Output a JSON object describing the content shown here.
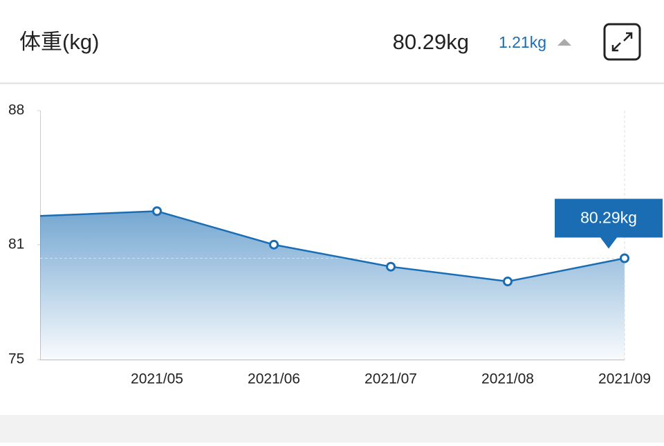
{
  "header": {
    "title": "体重(kg)",
    "value": "80.29kg",
    "change": "1.21kg"
  },
  "chart_data": {
    "type": "area",
    "categories": [
      null,
      "2021/05",
      "2021/06",
      "2021/07",
      "2021/08",
      "2021/09"
    ],
    "values": [
      82.5,
      82.75,
      81.0,
      79.85,
      79.08,
      80.29
    ],
    "color": "#1a6db3",
    "ylim": [
      75,
      88
    ],
    "yticks": [
      75,
      81,
      88
    ],
    "tooltip": "80.29kg"
  }
}
